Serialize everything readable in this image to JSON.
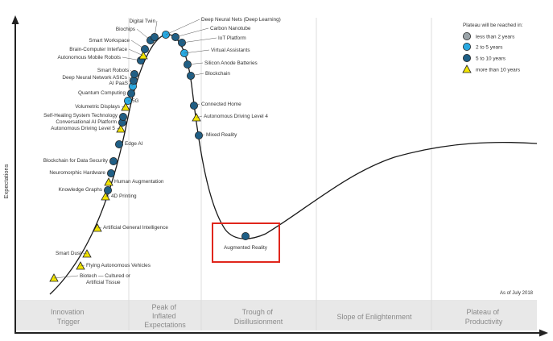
{
  "y_axis_label": "Expectations",
  "as_of": "As of July 2018",
  "phases": [
    [
      "Innovation",
      "Trigger"
    ],
    [
      "Peak of",
      "Inflated",
      "Expectations"
    ],
    [
      "Trough of",
      "Disillusionment"
    ],
    [
      "Slope of Enlightenment"
    ],
    [
      "Plateau of",
      "Productivity"
    ]
  ],
  "legend": {
    "title": "Plateau will be reached in:",
    "items": [
      {
        "label": "less than 2 years",
        "shape": "circle",
        "color": "#9aa3a8"
      },
      {
        "label": "2 to 5 years",
        "shape": "circle",
        "color": "#29a8e0"
      },
      {
        "label": "5 to 10 years",
        "shape": "circle",
        "color": "#1f5f86"
      },
      {
        "label": "more than 10 years",
        "shape": "triangle",
        "color": "#f3e500"
      }
    ]
  },
  "technologies": [
    {
      "name": "Biotech — Cultured or Artificial Tissue",
      "lines": [
        "Biotech — Cultured or",
        "Artificial Tissue"
      ],
      "category": "more than 10 years"
    },
    {
      "name": "Flying Autonomous Vehicles",
      "category": "more than 10 years"
    },
    {
      "name": "Smart Dust",
      "category": "more than 10 years"
    },
    {
      "name": "Artificial General Intelligence",
      "category": "more than 10 years"
    },
    {
      "name": "4D Printing",
      "category": "more than 10 years"
    },
    {
      "name": "Knowledge Graphs",
      "category": "5 to 10 years"
    },
    {
      "name": "Human Augmentation",
      "category": "more than 10 years"
    },
    {
      "name": "Neuromorphic Hardware",
      "category": "5 to 10 years"
    },
    {
      "name": "Blockchain for Data Security",
      "category": "5 to 10 years"
    },
    {
      "name": "Edge AI",
      "category": "5 to 10 years"
    },
    {
      "name": "Autonomous Driving Level 5",
      "category": "more than 10 years"
    },
    {
      "name": "Conversational AI Platform",
      "category": "5 to 10 years"
    },
    {
      "name": "Self-Healing System Technology",
      "category": "5 to 10 years"
    },
    {
      "name": "Volumetric Displays",
      "category": "more than 10 years"
    },
    {
      "name": "5G",
      "category": "2 to 5 years"
    },
    {
      "name": "Quantum Computing",
      "category": "5 to 10 years"
    },
    {
      "name": "AI PaaS",
      "category": "2 to 5 years"
    },
    {
      "name": "Deep Neural Network ASICs",
      "category": "5 to 10 years"
    },
    {
      "name": "Smart Robots",
      "category": "5 to 10 years"
    },
    {
      "name": "Autonomous Mobile Robots",
      "category": "5 to 10 years"
    },
    {
      "name": "Brain-Computer Interface",
      "category": "more than 10 years"
    },
    {
      "name": "Smart Workspace",
      "category": "5 to 10 years"
    },
    {
      "name": "Biochips",
      "category": "5 to 10 years"
    },
    {
      "name": "Digital Twin",
      "category": "5 to 10 years"
    },
    {
      "name": "Deep Neural Nets (Deep Learning)",
      "category": "2 to 5 years"
    },
    {
      "name": "Carbon Nanotube",
      "category": "5 to 10 years"
    },
    {
      "name": "IoT Platform",
      "category": "5 to 10 years"
    },
    {
      "name": "Virtual Assistants",
      "category": "2 to 5 years"
    },
    {
      "name": "Silicon Anode Batteries",
      "category": "5 to 10 years"
    },
    {
      "name": "Blockchain",
      "category": "5 to 10 years"
    },
    {
      "name": "Connected Home",
      "category": "5 to 10 years"
    },
    {
      "name": "Autonomous Driving Level 4",
      "category": "more than 10 years"
    },
    {
      "name": "Mixed Reality",
      "category": "5 to 10 years"
    },
    {
      "name": "Augmented Reality",
      "category": "5 to 10 years",
      "highlighted": true
    }
  ]
}
